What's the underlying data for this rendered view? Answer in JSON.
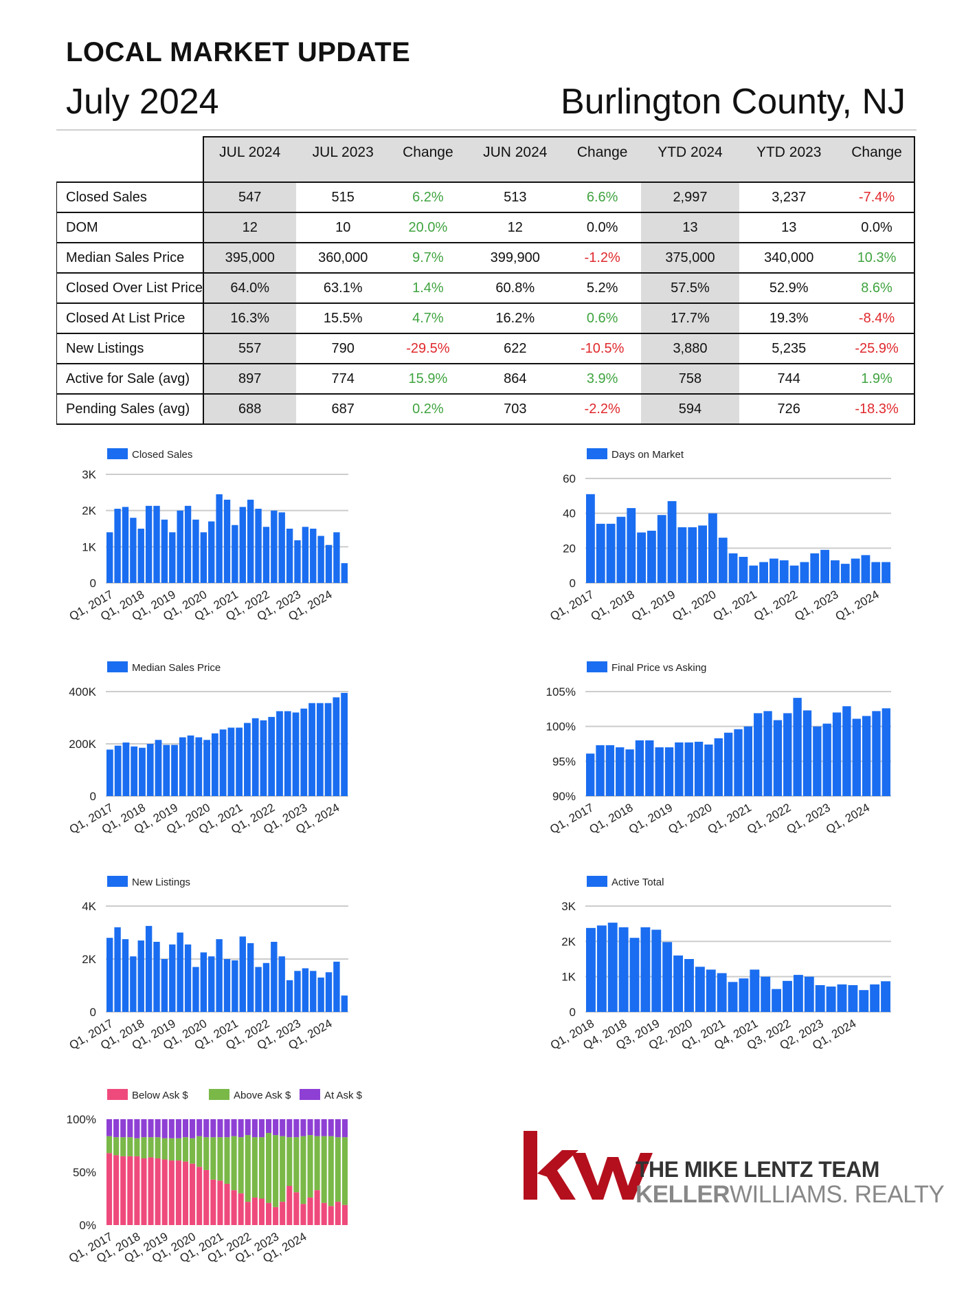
{
  "header": {
    "title": "LOCAL MARKET UPDATE",
    "date": "July 2024",
    "county": "Burlington County, NJ"
  },
  "table": {
    "columns": [
      "JUL 2024",
      "JUL 2023",
      "Change",
      "JUN 2024",
      "Change",
      "YTD 2024",
      "YTD 2023",
      "Change"
    ],
    "rows": [
      {
        "label": "Closed Sales",
        "values": [
          "547",
          "515",
          "6.2%",
          "513",
          "6.6%",
          "2,997",
          "3,237",
          "-7.4%"
        ],
        "signs": [
          "",
          "",
          "pos",
          "",
          "pos",
          "",
          "",
          "neg"
        ]
      },
      {
        "label": "DOM",
        "values": [
          "12",
          "10",
          "20.0%",
          "12",
          "0.0%",
          "13",
          "13",
          "0.0%"
        ],
        "signs": [
          "",
          "",
          "pos",
          "",
          "neu",
          "",
          "",
          "neu"
        ]
      },
      {
        "label": "Median Sales Price",
        "values": [
          "395,000",
          "360,000",
          "9.7%",
          "399,900",
          "-1.2%",
          "375,000",
          "340,000",
          "10.3%"
        ],
        "signs": [
          "",
          "",
          "pos",
          "",
          "neg",
          "",
          "",
          "pos"
        ]
      },
      {
        "label": "Closed Over List Price",
        "values": [
          "64.0%",
          "63.1%",
          "1.4%",
          "60.8%",
          "5.2%",
          "57.5%",
          "52.9%",
          "8.6%"
        ],
        "signs": [
          "",
          "",
          "pos",
          "",
          "neu",
          "",
          "",
          "pos"
        ]
      },
      {
        "label": "Closed At List Price",
        "values": [
          "16.3%",
          "15.5%",
          "4.7%",
          "16.2%",
          "0.6%",
          "17.7%",
          "19.3%",
          "-8.4%"
        ],
        "signs": [
          "",
          "",
          "pos",
          "",
          "pos",
          "",
          "",
          "neg"
        ]
      },
      {
        "label": "New Listings",
        "values": [
          "557",
          "790",
          "-29.5%",
          "622",
          "-10.5%",
          "3,880",
          "5,235",
          "-25.9%"
        ],
        "signs": [
          "",
          "",
          "neg",
          "",
          "neg",
          "",
          "",
          "neg"
        ]
      },
      {
        "label": "Active for Sale (avg)",
        "values": [
          "897",
          "774",
          "15.9%",
          "864",
          "3.9%",
          "758",
          "744",
          "1.9%"
        ],
        "signs": [
          "",
          "",
          "pos",
          "",
          "pos",
          "",
          "",
          "pos"
        ]
      },
      {
        "label": "Pending Sales (avg)",
        "values": [
          "688",
          "687",
          "0.2%",
          "703",
          "-2.2%",
          "594",
          "726",
          "-18.3%"
        ],
        "signs": [
          "",
          "",
          "pos",
          "",
          "neg",
          "",
          "",
          "neg"
        ]
      }
    ]
  },
  "colors": {
    "bar": "#1a6df0",
    "below": "#ef4a7c",
    "above": "#7ab848",
    "at": "#8e3fd4",
    "kw_red": "#b40f1d",
    "positive": "#3fa33f",
    "negative": "#e0282c"
  },
  "chart_data": [
    {
      "type": "bar",
      "legend": "Closed Sales",
      "yticks": [
        "3K",
        "2K",
        "1K",
        "0"
      ],
      "ylim": [
        0,
        3000
      ],
      "xticks": [
        "Q1, 2017",
        "Q1, 2018",
        "Q1, 2019",
        "Q1, 2020",
        "Q1, 2021",
        "Q1, 2022",
        "Q1, 2023",
        "Q1, 2024"
      ],
      "values": [
        1400,
        2050,
        2100,
        1800,
        1500,
        2130,
        2130,
        1750,
        1400,
        2000,
        2130,
        1750,
        1400,
        1700,
        2450,
        2300,
        1600,
        2100,
        2300,
        2050,
        1550,
        2000,
        1950,
        1500,
        1180,
        1550,
        1500,
        1300,
        1050,
        1400,
        547
      ]
    },
    {
      "type": "bar",
      "legend": "Days on Market",
      "yticks": [
        "60",
        "40",
        "20",
        "0"
      ],
      "ylim": [
        0,
        60
      ],
      "xticks": [
        "Q1, 2017",
        "Q1, 2018",
        "Q1, 2019",
        "Q1, 2020",
        "Q1, 2021",
        "Q1, 2022",
        "Q1, 2023",
        "Q1, 2024"
      ],
      "values": [
        51,
        34,
        34,
        38,
        43,
        29,
        30,
        39,
        47,
        32,
        32,
        33,
        40,
        26,
        17,
        15,
        10,
        12,
        14,
        13,
        10,
        12,
        17,
        19,
        13,
        11,
        14,
        16,
        12,
        12
      ]
    },
    {
      "type": "bar",
      "legend": "Median Sales Price",
      "yticks": [
        "400K",
        "200K",
        "0"
      ],
      "ylim": [
        0,
        400000
      ],
      "xticks": [
        "Q1, 2017",
        "Q1, 2018",
        "Q1, 2019",
        "Q1, 2020",
        "Q1, 2021",
        "Q1, 2022",
        "Q1, 2023",
        "Q1, 2024"
      ],
      "values": [
        178000,
        193000,
        205000,
        190000,
        185000,
        200000,
        215000,
        196000,
        196000,
        225000,
        232000,
        225000,
        215000,
        240000,
        255000,
        262000,
        262000,
        280000,
        298000,
        290000,
        303000,
        325000,
        325000,
        320000,
        335000,
        356000,
        356000,
        356000,
        378000,
        395000
      ]
    },
    {
      "type": "bar",
      "legend": "Final Price vs Asking",
      "yticks": [
        "105%",
        "100%",
        "95%",
        "90%"
      ],
      "ylim": [
        90,
        105
      ],
      "xticks": [
        "Q1, 2017",
        "Q1, 2018",
        "Q1, 2019",
        "Q1, 2020",
        "Q1, 2021",
        "Q1, 2022",
        "Q1, 2023",
        "Q1, 2024"
      ],
      "values": [
        96.1,
        97.3,
        97.3,
        97.0,
        96.7,
        98.0,
        98.0,
        97.0,
        97.0,
        97.7,
        97.7,
        97.8,
        97.4,
        98.3,
        99.1,
        99.6,
        100.0,
        101.9,
        102.2,
        100.9,
        101.9,
        104.1,
        102.3,
        100.0,
        100.4,
        102.0,
        102.9,
        101.1,
        101.5,
        102.2,
        102.6
      ]
    },
    {
      "type": "bar",
      "legend": "New Listings",
      "yticks": [
        "4K",
        "2K",
        "0"
      ],
      "ylim": [
        0,
        4000
      ],
      "xticks": [
        "Q1, 2017",
        "Q1, 2018",
        "Q1, 2019",
        "Q1, 2020",
        "Q1, 2021",
        "Q1, 2022",
        "Q1, 2023",
        "Q1, 2024"
      ],
      "values": [
        2800,
        3200,
        2750,
        2100,
        2700,
        3250,
        2650,
        2000,
        2550,
        3000,
        2550,
        1700,
        2250,
        2100,
        2750,
        2000,
        1950,
        2850,
        2600,
        1700,
        1850,
        2650,
        2100,
        1200,
        1550,
        1650,
        1550,
        1300,
        1500,
        1900,
        620
      ]
    },
    {
      "type": "bar",
      "legend": "Active Total",
      "yticks": [
        "3K",
        "2K",
        "1K",
        "0"
      ],
      "ylim": [
        0,
        3000
      ],
      "xticks": [
        "Q1, 2018",
        "Q4, 2018",
        "Q3, 2019",
        "Q2, 2020",
        "Q1, 2021",
        "Q4, 2021",
        "Q3, 2022",
        "Q2, 2023",
        "Q1, 2024"
      ],
      "values": [
        2380,
        2450,
        2530,
        2400,
        2100,
        2400,
        2330,
        1980,
        1600,
        1500,
        1280,
        1200,
        1100,
        850,
        950,
        1200,
        1000,
        650,
        880,
        1050,
        1000,
        760,
        720,
        780,
        760,
        620,
        780,
        870
      ]
    },
    {
      "type": "bar",
      "stacked": true,
      "series": [
        {
          "name": "Below Ask $",
          "values": [
            68,
            66,
            65,
            65,
            65,
            63,
            64,
            63,
            62,
            61,
            61,
            60,
            58,
            55,
            52,
            43,
            42,
            39,
            33,
            30,
            22,
            26,
            25,
            21,
            17,
            22,
            37,
            31,
            20,
            26,
            33,
            21,
            18,
            22,
            19
          ]
        },
        {
          "name": "Above Ask $",
          "values": [
            16,
            17,
            18,
            18,
            17,
            20,
            19,
            20,
            20,
            21,
            21,
            23,
            24,
            29,
            31,
            40,
            41,
            44,
            51,
            53,
            63,
            57,
            58,
            66,
            68,
            62,
            46,
            52,
            64,
            59,
            51,
            63,
            66,
            61,
            64
          ]
        },
        {
          "name": "At Ask $",
          "values": [
            16,
            17,
            17,
            17,
            18,
            17,
            17,
            17,
            18,
            18,
            18,
            17,
            18,
            16,
            17,
            17,
            17,
            17,
            16,
            17,
            15,
            17,
            17,
            13,
            15,
            16,
            17,
            17,
            16,
            15,
            16,
            16,
            16,
            17,
            17
          ]
        }
      ],
      "yticks": [
        "100%",
        "50%",
        "0%"
      ],
      "ylim": [
        0,
        100
      ],
      "xticks": [
        "Q1, 2017",
        "Q1, 2018",
        "Q1, 2019",
        "Q1, 2020",
        "Q1, 2021",
        "Q1, 2022",
        "Q1, 2023",
        "Q1, 2024"
      ]
    }
  ],
  "logo": {
    "mark": "kw",
    "line1": "THE MIKE LENTZ TEAM",
    "line2_bold": "KELLER",
    "line2_rest": "WILLIAMS. REALTY"
  }
}
